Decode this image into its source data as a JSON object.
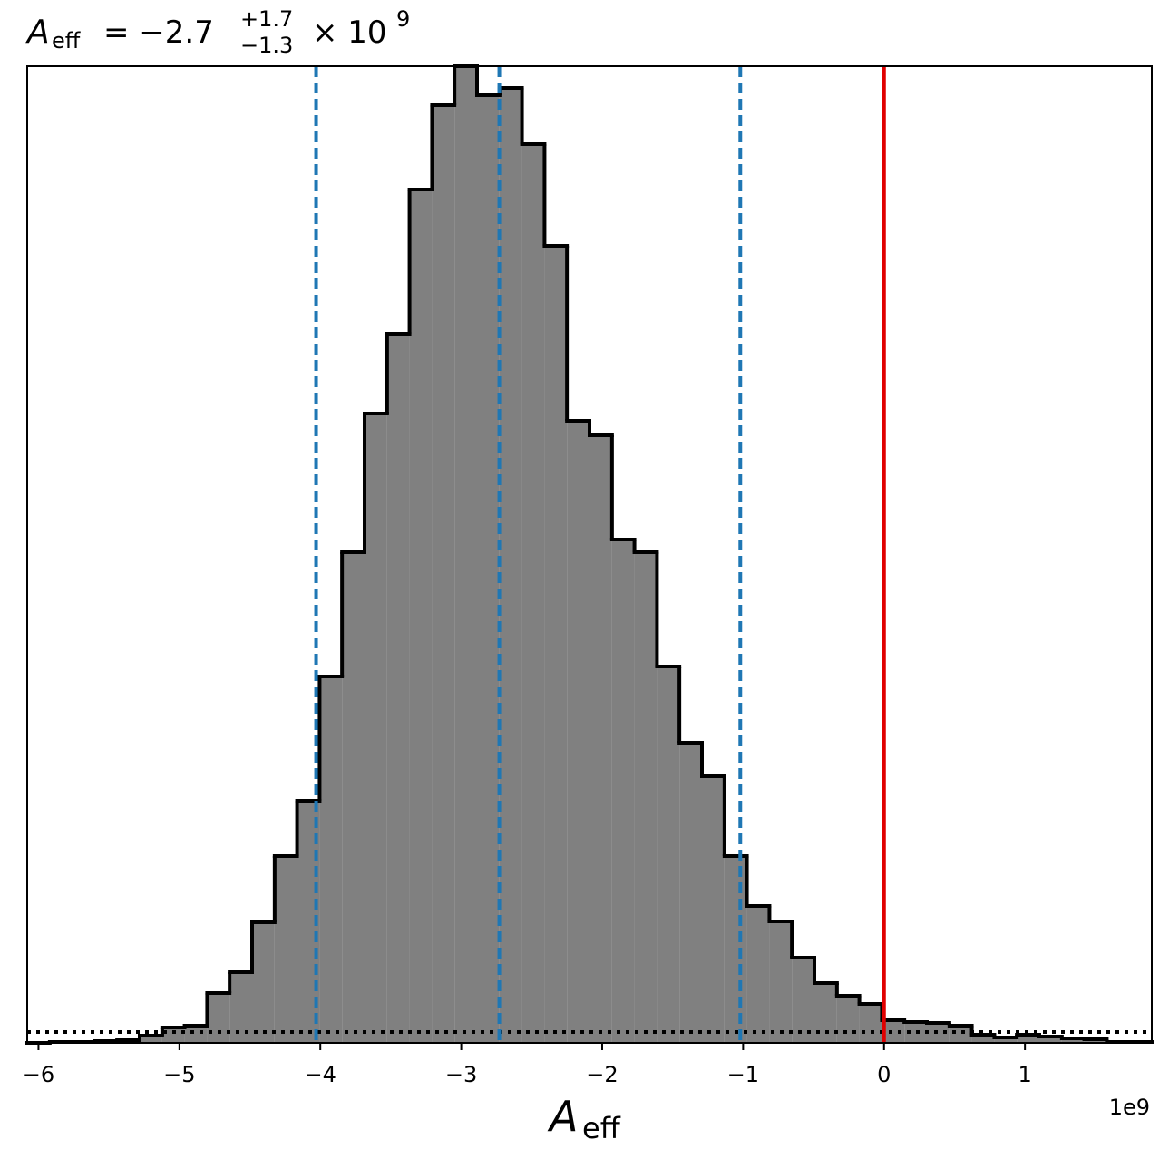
{
  "chart_data": {
    "type": "histogram",
    "title": {
      "symbol": "A",
      "subscript": "eff",
      "relation": "= −2.7",
      "upper": "+1.7",
      "lower": "−1.3",
      "factor": "× 10",
      "exponent": "9"
    },
    "xlabel": {
      "symbol": "A",
      "subscript": "eff"
    },
    "offset_text": "1e9",
    "bins": [
      -6.08,
      -5.92,
      -5.761,
      -5.601,
      -5.442,
      -5.282,
      -5.122,
      -4.963,
      -4.803,
      -4.644,
      -4.484,
      -4.324,
      -4.165,
      -4.005,
      -3.846,
      -3.686,
      -3.526,
      -3.367,
      -3.207,
      -3.048,
      -2.888,
      -2.728,
      -2.569,
      -2.409,
      -2.25,
      -2.09,
      -1.93,
      -1.771,
      -1.611,
      -1.452,
      -1.292,
      -1.132,
      -0.973,
      -0.813,
      -0.654,
      -0.494,
      -0.334,
      -0.175,
      -0.015,
      0.144,
      0.304,
      0.464,
      0.623,
      0.783,
      0.942,
      1.102,
      1.262,
      1.421,
      1.581,
      1.74,
      1.9
    ],
    "values": [
      0,
      1,
      1,
      2,
      3,
      8,
      17,
      19,
      55,
      78,
      133,
      206,
      267,
      404,
      541,
      694,
      782,
      941,
      1034,
      1077,
      1045,
      1053,
      991,
      879,
      686,
      670,
      555,
      541,
      415,
      331,
      294,
      206,
      151,
      134,
      94,
      66,
      52,
      43,
      25,
      23,
      22,
      19,
      9,
      6,
      9,
      7,
      5,
      4,
      1,
      1
    ],
    "color": "#808080",
    "edge_color": "#000000",
    "xlim": [
      -6.08,
      1.9
    ],
    "ylim": [
      0,
      1077
    ],
    "xticks": [
      {
        "value": -6,
        "label": "−6"
      },
      {
        "value": -5,
        "label": "−5"
      },
      {
        "value": -4,
        "label": "−4"
      },
      {
        "value": -3,
        "label": "−3"
      },
      {
        "value": -2,
        "label": "−2"
      },
      {
        "value": -1,
        "label": "−1"
      },
      0,
      1
    ],
    "vlines": [
      {
        "value": -4.03,
        "color": "#1f77b4",
        "style": "dashed"
      },
      {
        "value": -2.73,
        "color": "#1f77b4",
        "style": "dashed"
      },
      {
        "value": -1.02,
        "color": "#1f77b4",
        "style": "dashed"
      },
      {
        "value": 0,
        "color": "#e00000",
        "style": "solid"
      }
    ],
    "hlines": [
      {
        "value": 12,
        "color": "#000000",
        "style": "dotted"
      }
    ]
  }
}
